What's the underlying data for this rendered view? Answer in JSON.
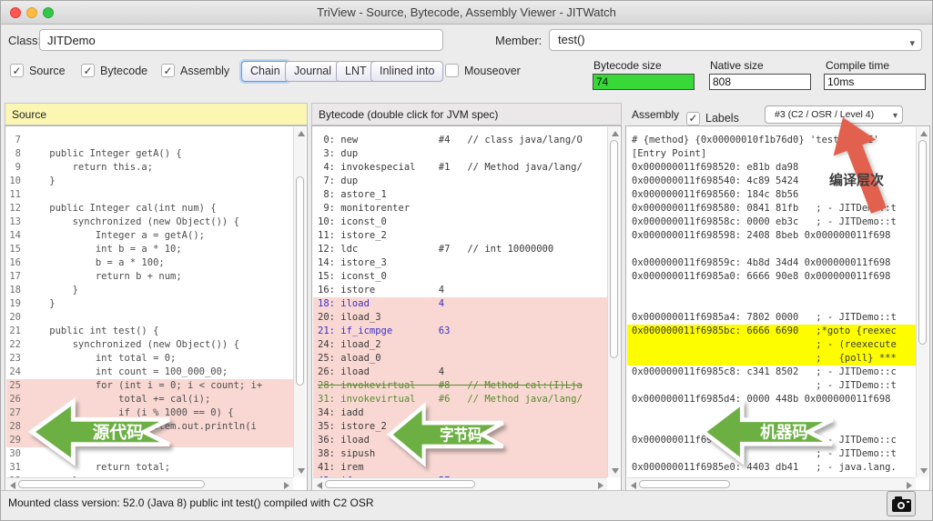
{
  "window": {
    "title": "TriView - Source, Bytecode, Assembly Viewer - JITWatch"
  },
  "toolbar": {
    "class_label": "Class:",
    "class_value": "JITDemo",
    "member_label": "Member:",
    "member_value": "test()",
    "checkboxes": {
      "source": "Source",
      "bytecode": "Bytecode",
      "assembly": "Assembly",
      "mouseover": "Mouseover"
    },
    "buttons": {
      "chain": "Chain",
      "journal": "Journal",
      "lnt": "LNT",
      "inlined_into": "Inlined into"
    },
    "metrics": [
      {
        "label": "Bytecode size",
        "value": "74",
        "value_bg": "#37d837"
      },
      {
        "label": "Native size",
        "value": "808",
        "value_bg": "#ffffff"
      },
      {
        "label": "Compile time",
        "value": "10ms",
        "value_bg": "#ffffff"
      }
    ]
  },
  "source_panel": {
    "title": "Source",
    "header_bg": "#fbf7b3",
    "lines": [
      {
        "n": 7,
        "t": "",
        "hl": false
      },
      {
        "n": 8,
        "t": "    public Integer getA() {",
        "hl": false
      },
      {
        "n": 9,
        "t": "        return this.a;",
        "hl": false
      },
      {
        "n": 10,
        "t": "    }",
        "hl": false
      },
      {
        "n": 11,
        "t": "",
        "hl": false
      },
      {
        "n": 12,
        "t": "    public Integer cal(int num) {",
        "hl": false
      },
      {
        "n": 13,
        "t": "        synchronized (new Object()) {",
        "hl": false
      },
      {
        "n": 14,
        "t": "            Integer a = getA();",
        "hl": false
      },
      {
        "n": 15,
        "t": "            int b = a * 10;",
        "hl": false
      },
      {
        "n": 16,
        "t": "            b = a * 100;",
        "hl": false
      },
      {
        "n": 17,
        "t": "            return b + num;",
        "hl": false
      },
      {
        "n": 18,
        "t": "        }",
        "hl": false
      },
      {
        "n": 19,
        "t": "    }",
        "hl": false
      },
      {
        "n": 20,
        "t": "",
        "hl": false
      },
      {
        "n": 21,
        "t": "    public int test() {",
        "hl": false
      },
      {
        "n": 22,
        "t": "        synchronized (new Object()) {",
        "hl": false
      },
      {
        "n": 23,
        "t": "            int total = 0;",
        "hl": false
      },
      {
        "n": 24,
        "t": "            int count = 100_000_00;",
        "hl": false
      },
      {
        "n": 25,
        "t": "            for (int i = 0; i < count; i+",
        "hl": true
      },
      {
        "n": 26,
        "t": "                total += cal(i);",
        "hl": true
      },
      {
        "n": 27,
        "t": "                if (i % 1000 == 0) {",
        "hl": true
      },
      {
        "n": 28,
        "t": "                    System.out.println(i",
        "hl": true
      },
      {
        "n": 29,
        "t": "",
        "hl": true
      },
      {
        "n": 30,
        "t": "",
        "hl": false
      },
      {
        "n": 31,
        "t": "            return total;",
        "hl": false
      },
      {
        "n": 32,
        "t": "        }",
        "hl": false
      }
    ]
  },
  "bytecode_panel": {
    "title": "Bytecode (double click for JVM spec)",
    "lines": [
      {
        "t": " 0: new              #4   // class java/lang/O",
        "c": "k",
        "s": false,
        "hl": false
      },
      {
        "t": " 3: dup",
        "c": "k",
        "s": false,
        "hl": false
      },
      {
        "t": " 4: invokespecial    #1   // Method java/lang/",
        "c": "k",
        "s": false,
        "hl": false
      },
      {
        "t": " 7: dup",
        "c": "k",
        "s": false,
        "hl": false
      },
      {
        "t": " 8: astore_1",
        "c": "k",
        "s": false,
        "hl": false
      },
      {
        "t": " 9: monitorenter",
        "c": "k",
        "s": false,
        "hl": false
      },
      {
        "t": "10: iconst_0",
        "c": "k",
        "s": false,
        "hl": false
      },
      {
        "t": "11: istore_2",
        "c": "k",
        "s": false,
        "hl": false
      },
      {
        "t": "12: ldc              #7   // int 10000000",
        "c": "k",
        "s": false,
        "hl": false
      },
      {
        "t": "14: istore_3",
        "c": "k",
        "s": false,
        "hl": false
      },
      {
        "t": "15: iconst_0",
        "c": "k",
        "s": false,
        "hl": false
      },
      {
        "t": "16: istore           4",
        "c": "k",
        "s": false,
        "hl": false
      },
      {
        "t": "18: iload            4",
        "c": "b",
        "s": false,
        "hl": true
      },
      {
        "t": "20: iload_3",
        "c": "k",
        "s": false,
        "hl": true
      },
      {
        "t": "21: if_icmpge        63",
        "c": "b",
        "s": false,
        "hl": true
      },
      {
        "t": "24: iload_2",
        "c": "k",
        "s": false,
        "hl": true
      },
      {
        "t": "25: aload_0",
        "c": "k",
        "s": false,
        "hl": true
      },
      {
        "t": "26: iload            4",
        "c": "k",
        "s": false,
        "hl": true
      },
      {
        "t": "28: invokevirtual    #8   // Method cal:(I)Lja",
        "c": "g",
        "s": true,
        "hl": true
      },
      {
        "t": "31: invokevirtual    #6   // Method java/lang/",
        "c": "g",
        "s": false,
        "hl": true
      },
      {
        "t": "34: iadd",
        "c": "k",
        "s": false,
        "hl": true
      },
      {
        "t": "35: istore_2",
        "c": "k",
        "s": false,
        "hl": true
      },
      {
        "t": "36: iload",
        "c": "k",
        "s": false,
        "hl": true
      },
      {
        "t": "38: sipush",
        "c": "k",
        "s": false,
        "hl": true
      },
      {
        "t": "41: irem",
        "c": "k",
        "s": false,
        "hl": true
      },
      {
        "t": "42: ifne             57",
        "c": "b",
        "s": false,
        "hl": true
      }
    ]
  },
  "assembly_panel": {
    "title": "Assembly",
    "labels_label": "Labels",
    "tier_value": "#3  (C2 / OSR / Level 4)",
    "lines": [
      {
        "t": "# {method} {0x00000010f1b76d0} 'test' '()I'",
        "hl": false
      },
      {
        "t": "[Entry Point]",
        "hl": false
      },
      {
        "t": "0x000000011f698520: e81b da98",
        "hl": false
      },
      {
        "t": "0x000000011f698540: 4c89 5424",
        "hl": false
      },
      {
        "t": "0x000000011f698560: 184c 8b56",
        "hl": false
      },
      {
        "t": "0x000000011f698580: 0841 81fb   ; - JITDemo::t",
        "hl": false
      },
      {
        "t": "0x000000011f69858c: 0000 eb3c   ; - JITDemo::t",
        "hl": false
      },
      {
        "t": "0x000000011f698598: 2408 8beb 0x000000011f698",
        "hl": false
      },
      {
        "t": "",
        "hl": false
      },
      {
        "t": "0x000000011f69859c: 4b8d 34d4 0x000000011f698",
        "hl": false
      },
      {
        "t": "0x000000011f6985a0: 6666 90e8 0x000000011f698",
        "hl": false
      },
      {
        "t": "",
        "hl": false
      },
      {
        "t": "",
        "hl": false
      },
      {
        "t": "0x000000011f6985a4: 7802 0000   ; - JITDemo::t",
        "hl": false
      },
      {
        "t": "0x000000011f6985bc: 6666 6690   ;*goto {reexec",
        "hl": true
      },
      {
        "t": "                                ; - (reexecute",
        "hl": true
      },
      {
        "t": "                                ;   {poll} ***",
        "hl": true
      },
      {
        "t": "0x000000011f6985c8: c341 8502   ; - JITDemo::c",
        "hl": false
      },
      {
        "t": "                                ; - JITDemo::t",
        "hl": false
      },
      {
        "t": "0x000000011f6985d4: 0000 448b 0x000000011f698",
        "hl": false
      },
      {
        "t": "",
        "hl": false
      },
      {
        "t": "",
        "hl": false
      },
      {
        "t": "0x000000011f69                  ; - JITDemo::c",
        "hl": false
      },
      {
        "t": "                                ; - JITDemo::t",
        "hl": false
      },
      {
        "t": "0x000000011f6985e0: 4403 db41   ; - java.lang.",
        "hl": false
      }
    ]
  },
  "annotations": {
    "source_arrow": "源代码",
    "bytecode_arrow": "字节码",
    "assembly_arrow": "机器码",
    "compile_tier_label": "编译层次",
    "arrow_green_color": "#6cb043",
    "arrow_red_color": "#e2604e"
  },
  "statusbar": {
    "text": "Mounted class version: 52.0 (Java 8) public int test() compiled with C2 OSR"
  }
}
